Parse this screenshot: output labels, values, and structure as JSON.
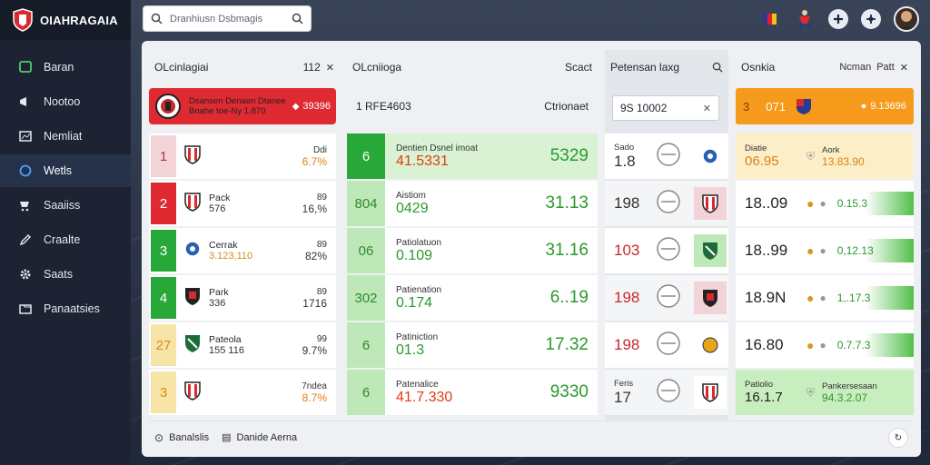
{
  "app": {
    "name": "OIAHRAGAIA"
  },
  "sidebar": {
    "items": [
      {
        "label": "Baran",
        "icon": "tv-icon"
      },
      {
        "label": "Nootoo",
        "icon": "megaphone-icon"
      },
      {
        "label": "Nemliat",
        "icon": "chart-icon"
      },
      {
        "label": "Wetls",
        "icon": "circle-icon"
      },
      {
        "label": "Saaiiss",
        "icon": "cart-icon"
      },
      {
        "label": "Craalte",
        "icon": "edit-icon"
      },
      {
        "label": "Saats",
        "icon": "gear-icon"
      },
      {
        "label": "Panaatsies",
        "icon": "folder-icon"
      }
    ]
  },
  "search": {
    "placeholder": "Dranhiusn Dsbmagis"
  },
  "panel1": {
    "title": "OLcinlagiai",
    "count": "112",
    "banner": {
      "title": "Dsansen Denaen Dtanee",
      "sub": "Bnahe toe-Ny 1.870",
      "value": "39396"
    },
    "rows": [
      {
        "rank": "1",
        "name": "",
        "sub": "",
        "a": "Ddi",
        "b": "6.7%"
      },
      {
        "rank": "2",
        "name": "Pack",
        "sub": "576",
        "a": "89",
        "b": "16,%"
      },
      {
        "rank": "3",
        "name": "Cerrak",
        "sub": "3.123,110",
        "a": "89",
        "b": "82%"
      },
      {
        "rank": "4",
        "name": "Park",
        "sub": "336",
        "a": "89",
        "b": "1716"
      },
      {
        "rank": "27",
        "name": "Pateola",
        "sub": "155 116",
        "a": "99",
        "b": "9.7%"
      },
      {
        "rank": "3",
        "name": "",
        "sub": "",
        "a": "7ndea",
        "b": "8.7%"
      }
    ]
  },
  "panel2": {
    "title": "OLcniioga",
    "right": "Scact",
    "header_value": "1 RFE4603",
    "header_right": "Ctrionaet",
    "rows": [
      {
        "rank": "6",
        "name": "Dentien Dsnel imoat",
        "value": "41.5331",
        "right": "5329"
      },
      {
        "rank": "804",
        "name": "Aistiom",
        "value": "0429",
        "right": "31.13"
      },
      {
        "rank": "06",
        "name": "Patiolatuon",
        "value": "0.109",
        "right": "31.16"
      },
      {
        "rank": "302",
        "name": "Patienation",
        "value": "0.174",
        "right": "6..19"
      },
      {
        "rank": "6",
        "name": "Patiniction",
        "value": "01.3",
        "right": "17.32"
      },
      {
        "rank": "6",
        "name": "Patenalice",
        "value": "41.7.330",
        "right": "9330"
      }
    ]
  },
  "panel3": {
    "title": "Petensan laxg",
    "input_value": "9S 10002",
    "rows": [
      {
        "label": "Sado",
        "value": "1.8"
      },
      {
        "label": "",
        "value": "198"
      },
      {
        "label": "",
        "value": "103"
      },
      {
        "label": "",
        "value": "198"
      },
      {
        "label": "",
        "value": "198"
      },
      {
        "label": "Feris",
        "value": "17"
      }
    ]
  },
  "panel4": {
    "title": "Osnkia",
    "right1": "Ncman",
    "right2": "Patt",
    "banner": {
      "value": "3",
      "sub": "071",
      "amount": "9.13696"
    },
    "rows": [
      {
        "label": "Diatie",
        "value": "06.95",
        "name": "Aork",
        "amount": "13.83.90"
      },
      {
        "label": "",
        "value": "18..09",
        "name": "",
        "amount": "0.15.3"
      },
      {
        "label": "",
        "value": "18..99",
        "name": "",
        "amount": "0,12.13"
      },
      {
        "label": "",
        "value": "18.9N",
        "name": "",
        "amount": "1,.17.3"
      },
      {
        "label": "",
        "value": "16.80",
        "name": "",
        "amount": "0.7.7.3"
      },
      {
        "label": "Patiolio",
        "value": "16.1.7",
        "name": "Pankersesaan",
        "amount": "94.3.2.07"
      }
    ]
  },
  "footer": {
    "left": "Banalslis",
    "right": "Danide Aerna"
  },
  "colors": {
    "accent": "#e02a32",
    "green": "#29a83a",
    "orange": "#f59a1b"
  }
}
